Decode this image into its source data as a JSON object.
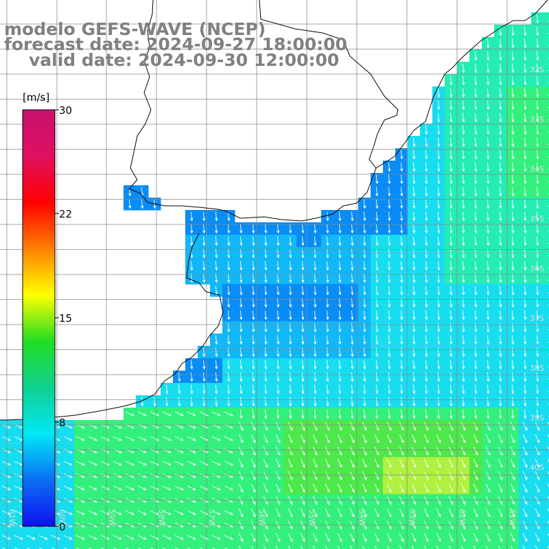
{
  "title": {
    "line1": "modelo GEFS-WAVE (NCEP)",
    "line2": "forecast date: 2024-09-27 18:00:00",
    "line3": "valid date: 2024-09-30 12:00:00"
  },
  "colorbar": {
    "unit": "[m/s]",
    "ticks": [
      "30",
      "22",
      "15",
      "8",
      "0"
    ],
    "min": 0,
    "max": 30,
    "colors": [
      "#1010f0",
      "#0a6ff5",
      "#00e8f5",
      "#10d090",
      "#22dd22",
      "#ffff00",
      "#ff8000",
      "#ff0000",
      "#e01060",
      "#c8106e"
    ]
  },
  "grid_labels": {
    "right": [
      "32S",
      "33S",
      "34S",
      "35S",
      "36S",
      "37S",
      "38S",
      "39S",
      "40S"
    ],
    "bottom": [
      "61W",
      "60W",
      "59W",
      "58W",
      "57W",
      "56W",
      "55W",
      "54W",
      "53W",
      "52W",
      "51W"
    ]
  },
  "field": {
    "variable": "wind speed",
    "units": "m/s",
    "palette": {
      "deep_blue": "#0a52f2",
      "blue": "#0a8cf5",
      "light_blue": "#11b7f7",
      "cyan": "#18ddf0",
      "teal": "#24ecb4",
      "green": "#33f07c",
      "bright_green": "#4de84a",
      "yellow_green": "#b0f040"
    },
    "land_color": "#ffffff",
    "coast_color": "#000000",
    "grid_color": "#888888",
    "arrow_color": "#ffffff"
  }
}
